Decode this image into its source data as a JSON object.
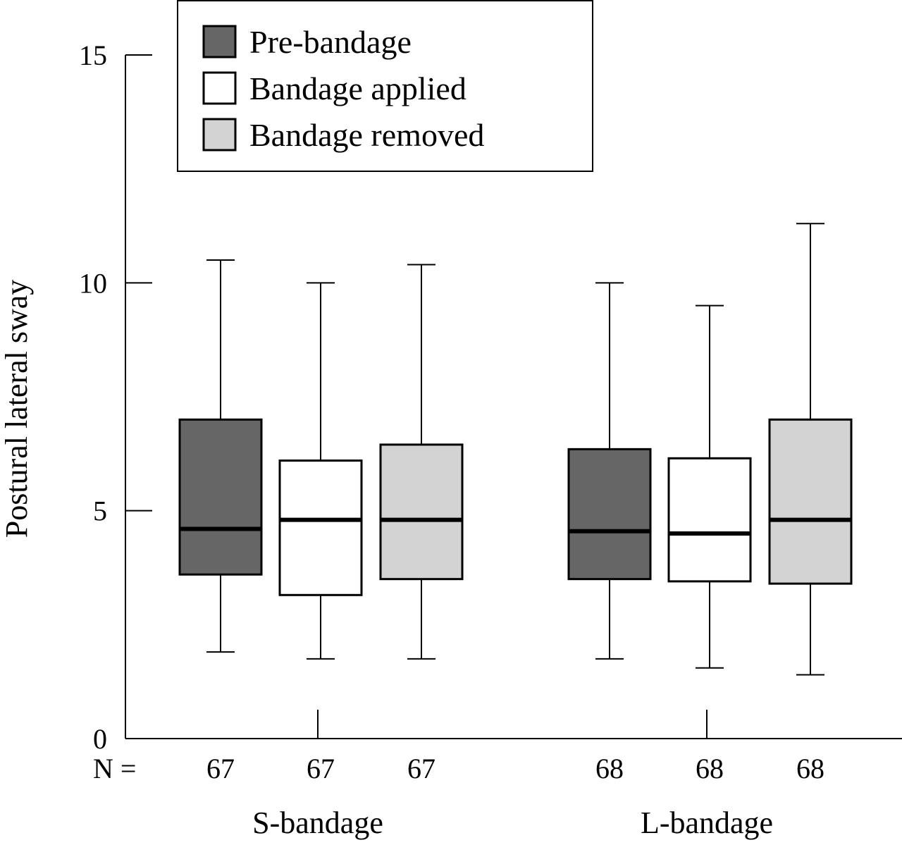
{
  "chart_data": {
    "type": "box",
    "ylabel": "Postural lateral sway",
    "ylim": [
      0,
      15
    ],
    "yticks": [
      0,
      5,
      10,
      15
    ],
    "n_prefix": "N =",
    "groups": [
      {
        "label": "S-bandage",
        "boxes": [
          {
            "series": "Pre-bandage",
            "n": "67",
            "whisker_low": 1.9,
            "q1": 3.6,
            "median": 4.6,
            "q3": 7.0,
            "whisker_high": 10.5
          },
          {
            "series": "Bandage applied",
            "n": "67",
            "whisker_low": 1.75,
            "q1": 3.15,
            "median": 4.8,
            "q3": 6.1,
            "whisker_high": 10.0
          },
          {
            "series": "Bandage removed",
            "n": "67",
            "whisker_low": 1.75,
            "q1": 3.5,
            "median": 4.8,
            "q3": 6.45,
            "whisker_high": 10.4
          }
        ]
      },
      {
        "label": "L-bandage",
        "boxes": [
          {
            "series": "Pre-bandage",
            "n": "68",
            "whisker_low": 1.75,
            "q1": 3.5,
            "median": 4.55,
            "q3": 6.35,
            "whisker_high": 10.0
          },
          {
            "series": "Bandage applied",
            "n": "68",
            "whisker_low": 1.55,
            "q1": 3.45,
            "median": 4.5,
            "q3": 6.15,
            "whisker_high": 9.5
          },
          {
            "series": "Bandage removed",
            "n": "68",
            "whisker_low": 1.4,
            "q1": 3.4,
            "median": 4.8,
            "q3": 7.0,
            "whisker_high": 11.3
          }
        ]
      }
    ],
    "series": [
      {
        "name": "Pre-bandage",
        "color": "#666666"
      },
      {
        "name": "Bandage applied",
        "color": "#ffffff"
      },
      {
        "name": "Bandage removed",
        "color": "#d3d3d3"
      }
    ],
    "legend_position": "top-center",
    "grid": false
  }
}
